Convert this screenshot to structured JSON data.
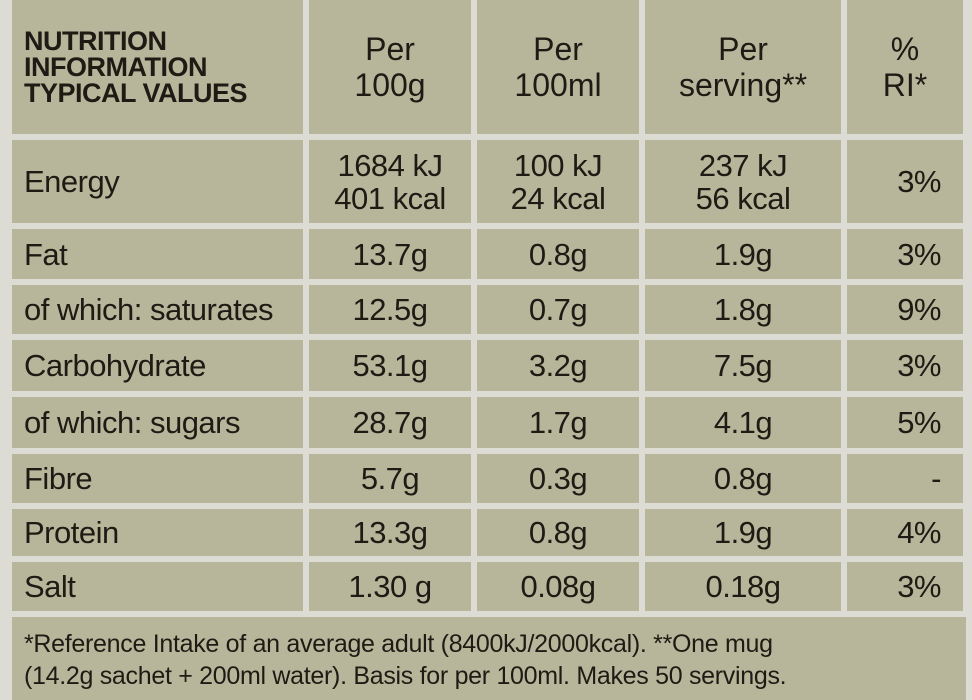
{
  "table": {
    "header": [
      [
        "NUTRITION",
        "INFORMATION",
        "TYPICAL VALUES"
      ],
      [
        "Per",
        "100g"
      ],
      [
        "Per",
        "100ml"
      ],
      [
        "Per",
        "serving**"
      ],
      [
        "%",
        "RI*"
      ]
    ],
    "rows": [
      [
        [
          "Energy"
        ],
        [
          "1684 kJ",
          "401 kcal"
        ],
        [
          "100 kJ",
          "24 kcal"
        ],
        [
          "237 kJ",
          "56 kcal"
        ],
        [
          "3%"
        ]
      ],
      [
        [
          "Fat"
        ],
        [
          "13.7g"
        ],
        [
          "0.8g"
        ],
        [
          "1.9g"
        ],
        [
          "3%"
        ]
      ],
      [
        [
          "of which: saturates"
        ],
        [
          "12.5g"
        ],
        [
          "0.7g"
        ],
        [
          "1.8g"
        ],
        [
          "9%"
        ]
      ],
      [
        [
          "Carbohydrate"
        ],
        [
          "53.1g"
        ],
        [
          "3.2g"
        ],
        [
          "7.5g"
        ],
        [
          "3%"
        ]
      ],
      [
        [
          "of which: sugars"
        ],
        [
          "28.7g"
        ],
        [
          "1.7g"
        ],
        [
          "4.1g"
        ],
        [
          "5%"
        ]
      ],
      [
        [
          "Fibre"
        ],
        [
          "5.7g"
        ],
        [
          "0.3g"
        ],
        [
          "0.8g"
        ],
        [
          "-"
        ]
      ],
      [
        [
          "Protein"
        ],
        [
          "13.3g"
        ],
        [
          "0.8g"
        ],
        [
          "1.9g"
        ],
        [
          "4%"
        ]
      ],
      [
        [
          "Salt"
        ],
        [
          "1.30 g"
        ],
        [
          "0.08g"
        ],
        [
          "0.18g"
        ],
        [
          "3%"
        ]
      ]
    ],
    "footnote": [
      "*Reference Intake of an average adult (8400kJ/2000kcal). **One mug",
      "(14.2g sachet + 200ml water). Basis for per 100ml. Makes 50 servings."
    ]
  }
}
